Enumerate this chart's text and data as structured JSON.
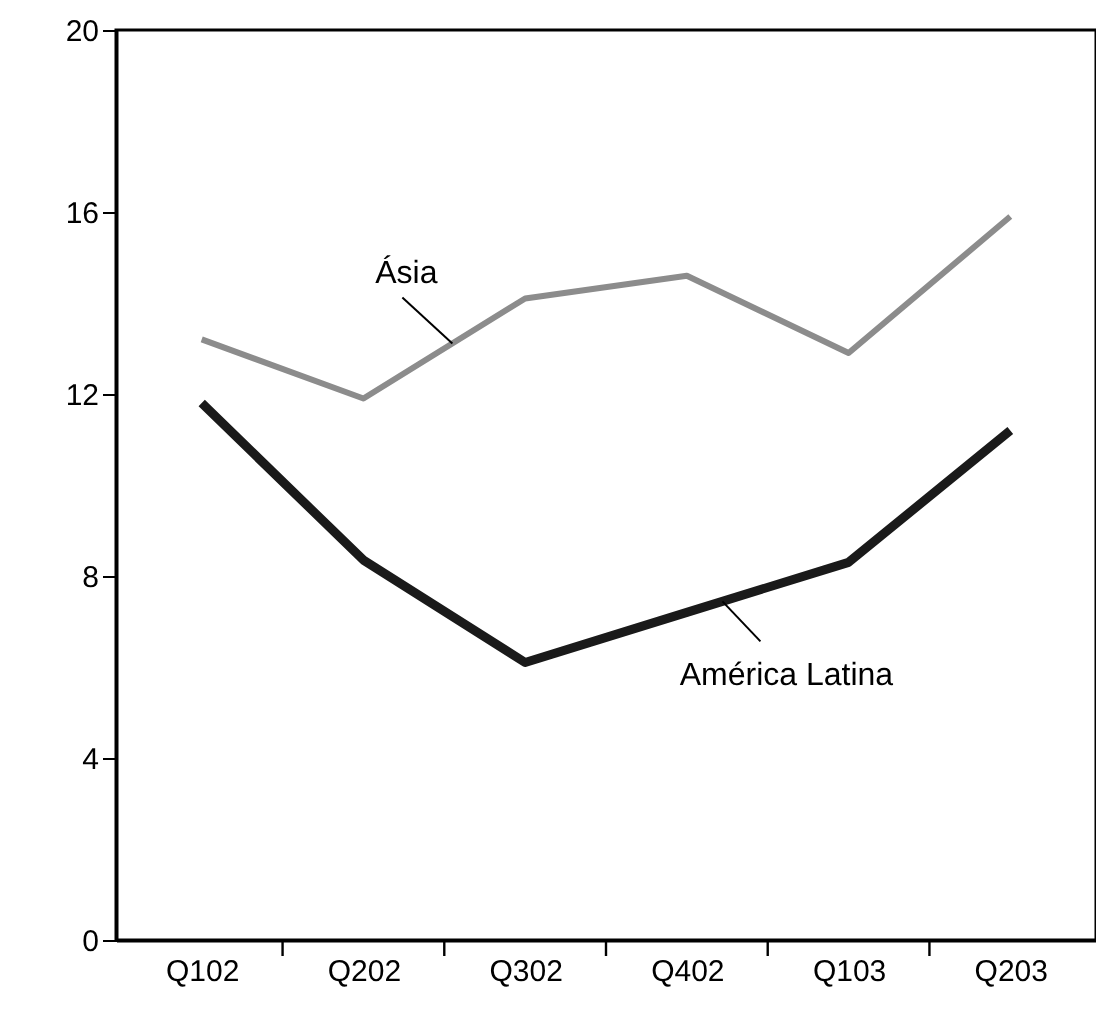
{
  "chart_data": {
    "type": "line",
    "categories": [
      "Q102",
      "Q202",
      "Q302",
      "Q402",
      "Q103",
      "Q203"
    ],
    "series": [
      {
        "name": "Ásia",
        "color": "#8c8c8c",
        "values": [
          13.2,
          11.9,
          14.1,
          14.6,
          12.9,
          15.9
        ]
      },
      {
        "name": "América Latina",
        "color": "#1a1a1a",
        "values": [
          11.8,
          8.35,
          6.1,
          7.2,
          8.3,
          11.2
        ]
      }
    ],
    "ylim": [
      0,
      20
    ],
    "yticks": [
      0,
      4,
      8,
      12,
      16,
      20
    ],
    "line_style": "solid"
  }
}
